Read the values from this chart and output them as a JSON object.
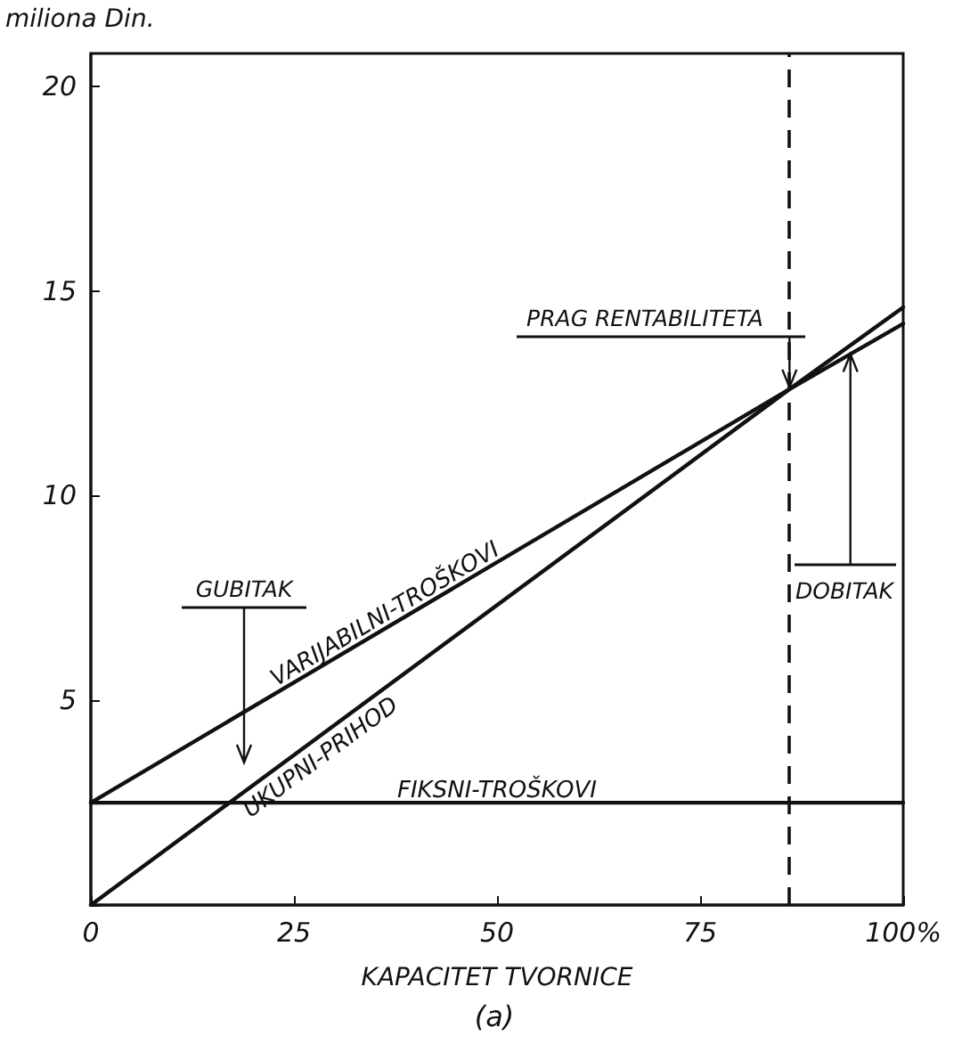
{
  "chart_data": {
    "type": "line",
    "xlabel": "KAPACITET TVORNICE",
    "ylabel": "miliona Din.",
    "x": [
      0,
      86,
      100
    ],
    "series": [
      {
        "name": "VARIJABILNI-TROŠKOVI",
        "color": "#111111",
        "values": [
          2.5,
          12.6,
          14.2
        ]
      },
      {
        "name": "UKUPNI-PRIHOD",
        "color": "#111111",
        "values": [
          0,
          12.6,
          14.6
        ]
      },
      {
        "name": "FIKSNI-TROŠKOVI",
        "color": "#111111",
        "values": [
          2.5,
          2.5,
          2.5
        ]
      }
    ],
    "xlim": [
      0,
      100
    ],
    "xticks": [
      0,
      25,
      50,
      75,
      {
        "value": 100,
        "label": "100%"
      }
    ],
    "ylim": [
      0,
      20.8
    ],
    "yticks": [
      {
        "value": 0,
        "label": null
      },
      5,
      10,
      15,
      20
    ],
    "ref_lines": [
      {
        "axis": "x",
        "value": 86,
        "line_style": "dashed",
        "color": "#111111"
      }
    ],
    "annotations": [
      {
        "text": "PRAG RENTABILITETA",
        "x": 86,
        "y": 12.6
      },
      "GUBITAK",
      {
        "text": "DOBITAK",
        "x": 93.5,
        "y": 13.5
      },
      "(a)"
    ],
    "grid": false,
    "legend": false,
    "marker": "none",
    "line_style": "solid"
  }
}
